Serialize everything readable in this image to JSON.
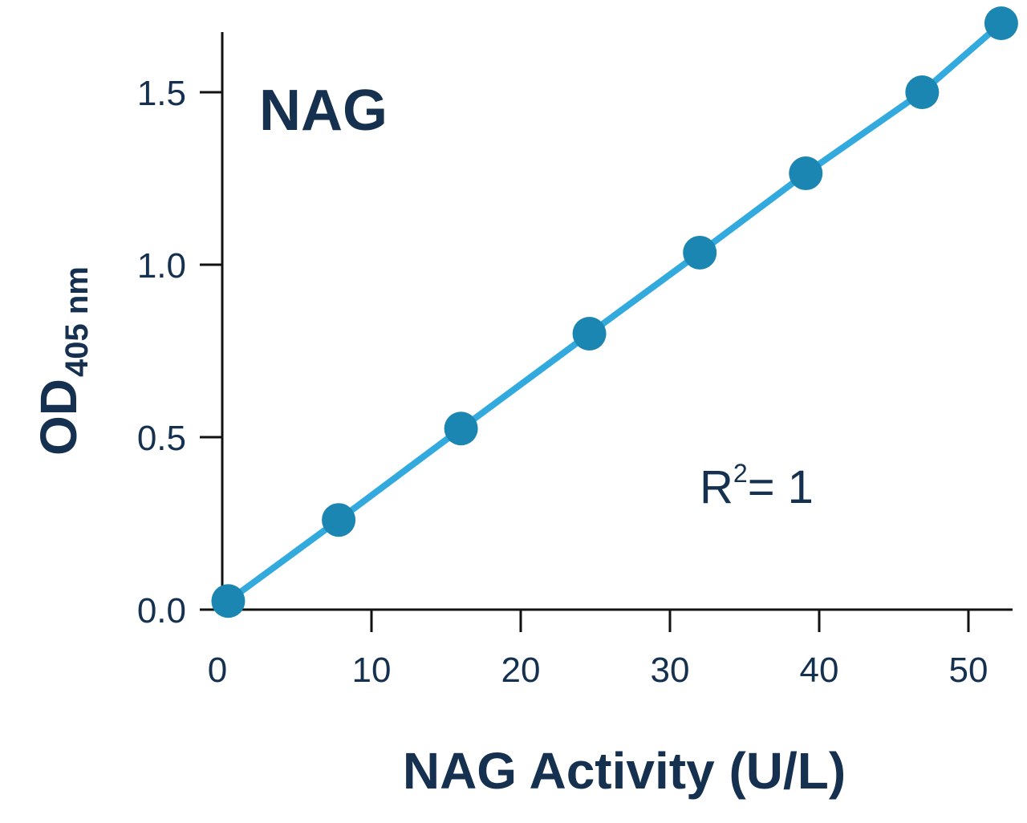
{
  "chart_data": {
    "type": "line",
    "title": "NAG",
    "xlabel": "NAG Activity (U/L)",
    "ylabel": "OD",
    "ylabel_subscript": "405 nm",
    "xlim": [
      0,
      53
    ],
    "ylim": [
      0,
      1.7
    ],
    "xticks": [
      "0",
      "10",
      "20",
      "30",
      "40",
      "50"
    ],
    "yticks": [
      "0.0",
      "0.5",
      "1.0",
      "1.5"
    ],
    "grid": false,
    "legend": "none",
    "annotation": {
      "base": "R",
      "superscript": "2",
      "rest": "= 1"
    },
    "series": [
      {
        "x": [
          0.4,
          7.8,
          16.0,
          24.6,
          32.0,
          39.1,
          46.9,
          52.2
        ],
        "y": [
          0.025,
          0.26,
          0.525,
          0.8,
          1.035,
          1.265,
          1.5,
          1.7
        ]
      }
    ],
    "colors": {
      "line": "#33aadd",
      "marker": "#1b86b2",
      "text": "#15314f",
      "axis": "#111111"
    }
  }
}
